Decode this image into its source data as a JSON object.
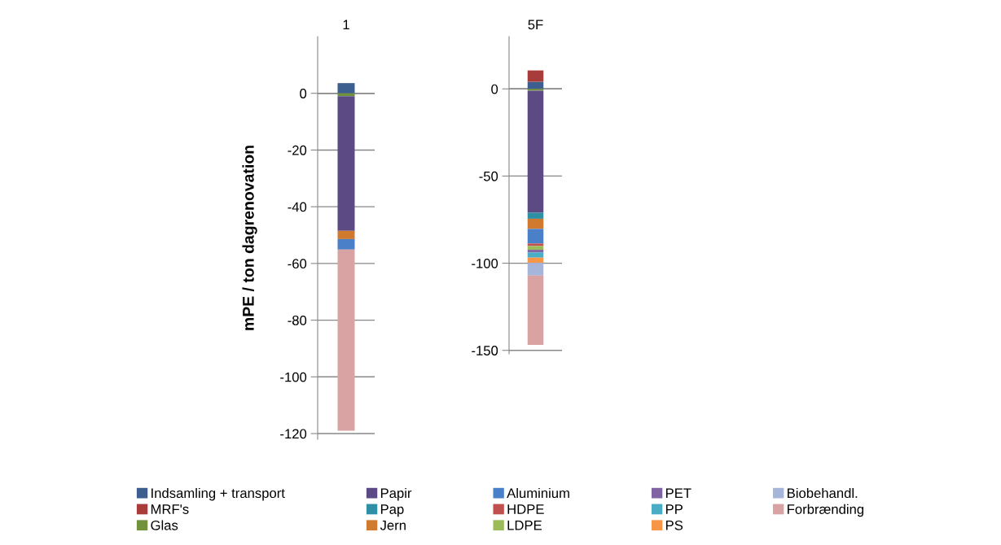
{
  "chart_data": [
    {
      "type": "bar",
      "stacked": true,
      "categories": [
        "1"
      ],
      "ylabel": "mPE / ton dagrenovation",
      "ylim": [
        -122,
        20
      ],
      "yticks": [
        0,
        -20,
        -40,
        -60,
        -80,
        -100,
        -120
      ],
      "grid": "y",
      "legend": "bottom",
      "series": [
        {
          "name": "Indsamling + transport",
          "color": "#3d5f8f",
          "values": [
            3.6
          ]
        },
        {
          "name": "MRF's",
          "color": "#a83c3a",
          "values": [
            null
          ]
        },
        {
          "name": "Glas",
          "color": "#71913c",
          "values": [
            -1
          ]
        },
        {
          "name": "Papir",
          "color": "#5c4a85",
          "values": [
            -47.5
          ]
        },
        {
          "name": "Pap",
          "color": "#2f8fa5",
          "values": [
            null
          ]
        },
        {
          "name": "Jern",
          "color": "#d07a2f",
          "values": [
            -2.9
          ]
        },
        {
          "name": "Aluminium",
          "color": "#4a80c8",
          "values": [
            -3.7
          ]
        },
        {
          "name": "HDPE",
          "color": "#c0504d",
          "values": [
            null
          ]
        },
        {
          "name": "LDPE",
          "color": "#9bbb59",
          "values": [
            null
          ]
        },
        {
          "name": "PET",
          "color": "#8064a2",
          "values": [
            null
          ]
        },
        {
          "name": "PP",
          "color": "#4bacc6",
          "values": [
            null
          ]
        },
        {
          "name": "PS",
          "color": "#f79646",
          "values": [
            null
          ]
        },
        {
          "name": "Biobehandl.",
          "color": "#a5b6da",
          "values": [
            null
          ]
        },
        {
          "name": "Forbrænding",
          "color": "#d9a3a3",
          "values": [
            -63.9
          ]
        }
      ]
    },
    {
      "type": "bar",
      "stacked": true,
      "categories": [
        "5F"
      ],
      "ylim": [
        -152,
        30
      ],
      "yticks": [
        0,
        -50,
        -100,
        -150
      ],
      "grid": "y",
      "series": [
        {
          "color": "#3d5f8f",
          "values": [
            4.1
          ]
        },
        {
          "color": "#a83c3a",
          "values": [
            6.5
          ]
        },
        {
          "color": "#71913c",
          "values": [
            -1
          ]
        },
        {
          "color": "#5c4a85",
          "values": [
            -70
          ]
        },
        {
          "color": "#2f8fa5",
          "values": [
            -3.5
          ]
        },
        {
          "color": "#d07a2f",
          "values": [
            -5.8
          ]
        },
        {
          "color": "#4a80c8",
          "values": [
            -8.4
          ]
        },
        {
          "color": "#c0504d",
          "values": [
            -1.4
          ]
        },
        {
          "color": "#9bbb59",
          "values": [
            -2.2
          ]
        },
        {
          "color": "#8064a2",
          "values": [
            -1.5
          ]
        },
        {
          "color": "#4bacc6",
          "values": [
            -3
          ]
        },
        {
          "color": "#f79646",
          "values": [
            -3
          ]
        },
        {
          "color": "#a5b6da",
          "values": [
            -7.3
          ]
        },
        {
          "color": "#d9a3a3",
          "values": [
            -39.8
          ]
        }
      ]
    }
  ]
}
